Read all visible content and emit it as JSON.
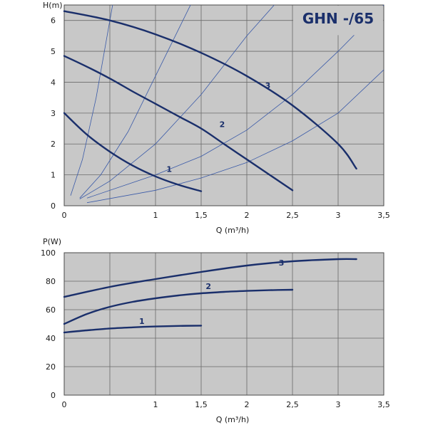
{
  "colors": {
    "plot_bg": "#c8c8c8",
    "grid": "#6a6a6a",
    "curve": "#1a2f6b",
    "system": "#3a5aa8"
  },
  "chart_data": [
    {
      "type": "line",
      "title": "GHN -/65",
      "xlabel": "Q (m³/h)",
      "ylabel": "H(m)",
      "xlim": [
        0,
        3.5
      ],
      "ylim": [
        0,
        6.5
      ],
      "xticks": [
        0,
        1,
        1.5,
        2,
        2.5,
        3,
        3.5
      ],
      "xtick_labels": [
        "0",
        "1",
        "1,5",
        "2",
        "2,5",
        "3",
        "3,5"
      ],
      "yticks": [
        0,
        1,
        2,
        3,
        4,
        5,
        6
      ],
      "ytick_labels": [
        "0",
        "1",
        "2",
        "3",
        "4",
        "5",
        "6"
      ],
      "grid": true,
      "series": [
        {
          "name": "1",
          "x": [
            0,
            0.25,
            0.5,
            0.75,
            1.0,
            1.25,
            1.5
          ],
          "y": [
            3.0,
            2.3,
            1.75,
            1.3,
            0.95,
            0.68,
            0.47
          ]
        },
        {
          "name": "2",
          "x": [
            0,
            0.25,
            0.5,
            0.75,
            1.0,
            1.25,
            1.5,
            1.75,
            2.0,
            2.25,
            2.5
          ],
          "y": [
            4.85,
            4.5,
            4.12,
            3.7,
            3.3,
            2.9,
            2.5,
            2.0,
            1.5,
            1.0,
            0.5
          ]
        },
        {
          "name": "3",
          "x": [
            0,
            0.5,
            1.0,
            1.5,
            2.0,
            2.5,
            3.0,
            3.2
          ],
          "y": [
            6.3,
            6.0,
            5.55,
            4.95,
            4.2,
            3.25,
            2.0,
            1.2
          ]
        }
      ],
      "system_curves": [
        {
          "x": [
            0.07,
            0.2,
            0.35,
            0.5,
            0.62,
            0.75
          ],
          "y": [
            0.33,
            1.5,
            3.5,
            6.0,
            8.0,
            10.0
          ]
        },
        {
          "x": [
            0.17,
            0.4,
            0.7,
            1.0,
            1.3,
            1.55
          ],
          "y": [
            0.25,
            1.0,
            2.4,
            4.2,
            6.0,
            7.5
          ]
        },
        {
          "x": [
            0.17,
            0.5,
            1.0,
            1.5,
            2.0,
            2.6
          ],
          "y": [
            0.22,
            0.8,
            2.0,
            3.6,
            5.5,
            7.5
          ]
        },
        {
          "x": [
            0.25,
            1.0,
            1.5,
            2.0,
            2.5,
            3.0,
            3.5
          ],
          "y": [
            0.25,
            1.0,
            1.6,
            2.45,
            3.6,
            5.0,
            6.5
          ]
        },
        {
          "x": [
            0.25,
            1.0,
            1.5,
            2.0,
            2.5,
            3.0,
            3.5
          ],
          "y": [
            0.1,
            0.5,
            0.9,
            1.4,
            2.1,
            3.0,
            4.4
          ]
        }
      ]
    },
    {
      "type": "line",
      "title": "",
      "xlabel": "Q (m³/h)",
      "ylabel": "P(W)",
      "xlim": [
        0,
        3.5
      ],
      "ylim": [
        0,
        100
      ],
      "xticks": [
        0,
        1,
        1.5,
        2,
        2.5,
        3,
        3.5
      ],
      "xtick_labels": [
        "0",
        "1",
        "1,5",
        "2",
        "2,5",
        "3",
        "3,5"
      ],
      "yticks": [
        0,
        20,
        40,
        60,
        80,
        100
      ],
      "ytick_labels": [
        "0",
        "20",
        "40",
        "60",
        "80",
        "100"
      ],
      "grid": true,
      "series": [
        {
          "name": "1",
          "x": [
            0,
            0.25,
            0.5,
            0.75,
            1.0,
            1.25,
            1.5
          ],
          "y": [
            44,
            45.5,
            46.8,
            47.6,
            48.2,
            48.6,
            48.8
          ]
        },
        {
          "name": "2",
          "x": [
            0,
            0.25,
            0.5,
            0.75,
            1.0,
            1.25,
            1.5,
            1.75,
            2.0,
            2.25,
            2.5
          ],
          "y": [
            50,
            57,
            62,
            65.5,
            68,
            70,
            71.5,
            72.5,
            73.2,
            73.7,
            74
          ]
        },
        {
          "name": "3",
          "x": [
            0,
            0.5,
            1.0,
            1.5,
            2.0,
            2.5,
            3.0,
            3.2
          ],
          "y": [
            69,
            76,
            81.5,
            86.5,
            91,
            94,
            95.5,
            95.5
          ]
        }
      ]
    }
  ]
}
